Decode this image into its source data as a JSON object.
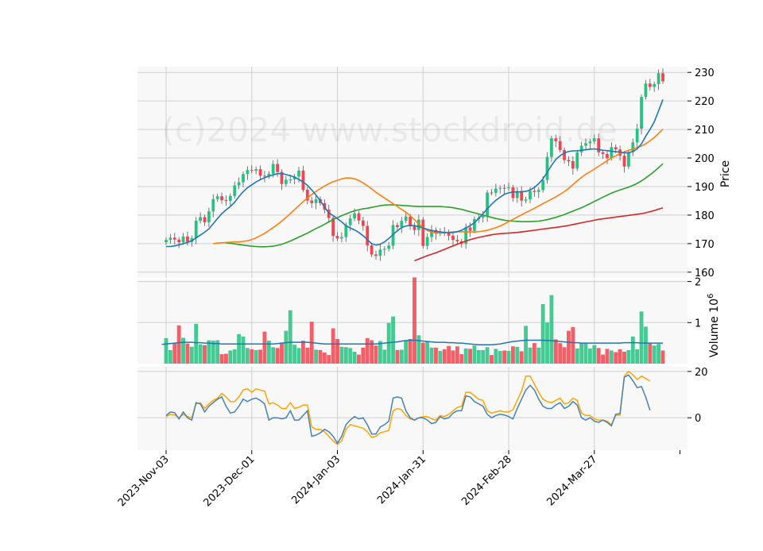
{
  "watermark": "(c)2024 www.stockdroid.de",
  "colors": {
    "up": "#26c281",
    "down": "#f4424e",
    "ma_short": "#1f77b4",
    "ma_mid": "#ff7f0e",
    "ma_long": "#2ca02c",
    "ma_200": "#d62728",
    "vol_ma": "#1f77b4",
    "osc_fast": "#4682b4",
    "osc_slow": "#ffa500",
    "panel_bg": "#f8f8f8",
    "grid": "#d0d0d0"
  },
  "chart_data": {
    "type": "candlestick",
    "x_tick_labels": [
      "2023-Nov-03",
      "2023-Dec-01",
      "2024-Jan-03",
      "2024-Jan-31",
      "2024-Feb-28",
      "2024-Mar-27"
    ],
    "x_tick_index": [
      0,
      20,
      40,
      60,
      80,
      100
    ],
    "price": {
      "ylabel": "Price",
      "ylim": [
        158,
        232
      ],
      "yticks": [
        160,
        170,
        180,
        190,
        200,
        210,
        220,
        230
      ],
      "close": [
        171.3,
        172.1,
        171.4,
        170.5,
        172.5,
        170.6,
        171.9,
        178,
        179.3,
        177.5,
        181.3,
        185.6,
        186.6,
        185.2,
        185,
        186.7,
        190.4,
        191.5,
        194.4,
        195.8,
        195.6,
        196.1,
        193.8,
        193.6,
        194.5,
        197.9,
        195.1,
        190.9,
        192.4,
        192.5,
        193.5,
        195.6,
        188.9,
        185.1,
        184.2,
        185.6,
        184.2,
        181.9,
        179,
        172.7,
        171.8,
        172.3,
        176.5,
        178.8,
        180.6,
        178.1,
        176.2,
        169.4,
        166.2,
        165.7,
        167.9,
        168.2,
        169.3,
        176.5,
        175.8,
        178,
        179.5,
        176.1,
        174.8,
        178.4,
        169.2,
        172.3,
        174.8,
        173.5,
        174.1,
        174,
        172.8,
        171.3,
        170.8,
        169.9,
        175.7,
        174.5,
        178.6,
        179.1,
        179.7,
        187.9,
        187.8,
        189.3,
        189.5,
        189.4,
        189.7,
        186,
        188.4,
        185.1,
        185.5,
        188.5,
        188.1,
        188.8,
        192.3,
        200.4,
        206.9,
        205.9,
        202.8,
        199.3,
        198.9,
        196.3,
        202,
        204.3,
        205.2,
        205.8,
        206.9,
        202,
        201.4,
        200,
        203.8,
        203,
        200.8,
        197,
        202,
        205.5,
        210.3,
        221.4,
        226.1,
        224.9,
        225.9,
        229.7,
        226.9
      ],
      "volume_hint_note": "",
      "ma_short": [
        169,
        169,
        169.2,
        169.6,
        170,
        170.4,
        171,
        172,
        173,
        174,
        175.2,
        177,
        178.8,
        180.5,
        181.8,
        183,
        184.5,
        186.5,
        188.2,
        189.6,
        190.6,
        191.6,
        192.4,
        193.1,
        193.6,
        194.1,
        194.5,
        194.6,
        194.2,
        193.8,
        193.3,
        192.5,
        191.6,
        190.4,
        188.8,
        187,
        185,
        182.8,
        180.8,
        179.8,
        178.8,
        177.6,
        176.3,
        175.5,
        174.8,
        173.9,
        172.8,
        171.4,
        170,
        169.5,
        169.8,
        170.6,
        171.8,
        173.2,
        174.5,
        175.6,
        176.2,
        176.4,
        176.3,
        176,
        175.5,
        175,
        174.6,
        174.3,
        174.1,
        173.9,
        173.8,
        173.9,
        174.2,
        174.7,
        175.5,
        176.3,
        177.3,
        178.8,
        180.5,
        182.2,
        183.8,
        185.2,
        186.3,
        187.3,
        187.8,
        188.1,
        188.1,
        188.2,
        188.3,
        188.8,
        189.7,
        191,
        192.7,
        195,
        197.4,
        199.5,
        200.8,
        201.8,
        202.3,
        202.5,
        202.5,
        202.7,
        202.9,
        203.1,
        203.2,
        203,
        202.7,
        202.6,
        202.4,
        202.2,
        202.1,
        201.8,
        201.8,
        202.3,
        203.2,
        205,
        207.6,
        210,
        212.7,
        216.5,
        220.5
      ],
      "ma_mid": [
        170,
        170.2,
        170.3,
        170.4,
        170.5,
        170.6,
        170.6,
        170.8,
        171,
        171.4,
        172,
        172.8,
        173.6,
        174.6,
        175.6,
        176.7,
        177.9,
        179.2,
        180.5,
        181.9,
        183.3,
        184.7,
        186,
        187.2,
        188.3,
        189.3,
        190.2,
        191,
        191.7,
        192.2,
        192.7,
        193,
        193,
        192.7,
        192.1,
        191.3,
        190.3,
        189.2,
        188,
        187,
        186,
        185,
        184,
        183,
        182,
        181,
        179.8,
        178.4,
        176.9,
        175.6,
        174.6,
        174,
        173.7,
        173.7,
        173.8,
        174,
        174.1,
        174.2,
        174.2,
        174.1,
        174.1,
        174.1,
        174.2,
        174.4,
        174.7,
        175.1,
        175.6,
        176.2,
        176.9,
        177.7,
        178.5,
        179.3,
        180.1,
        180.9,
        181.6,
        182.4,
        183.2,
        184,
        184.8,
        185.6,
        186.4,
        187.3,
        188.2,
        189.4,
        190.7,
        192,
        193.2,
        194.3,
        195.2,
        196.1,
        197.1,
        198.1,
        199.1,
        200,
        200.8,
        201.5,
        202.1,
        202.7,
        203.2,
        203.7,
        204.2,
        205,
        206,
        207.2,
        208.6,
        210.1
      ],
      "ma_long": [
        170.2,
        170.1,
        169.9,
        169.7,
        169.5,
        169.3,
        169.1,
        169,
        168.9,
        168.9,
        169,
        169.1,
        169.4,
        169.8,
        170.3,
        170.9,
        171.6,
        172.3,
        173,
        173.7,
        174.5,
        175.3,
        176,
        176.8,
        177.6,
        178.4,
        179.1,
        179.8,
        180.4,
        181,
        181.5,
        181.9,
        182.2,
        182.4,
        182.7,
        183,
        183.3,
        183.5,
        183.6,
        183.6,
        183.5,
        183.4,
        183.3,
        183.2,
        183.1,
        183,
        183,
        183,
        183,
        183,
        183,
        182.9,
        182.8,
        182.6,
        182.3,
        182,
        181.6,
        181.2,
        180.8,
        180.4,
        180,
        179.6,
        179.2,
        178.8,
        178.5,
        178.2,
        178,
        177.9,
        177.8,
        177.7,
        177.7,
        177.7,
        177.8,
        177.9,
        178.1,
        178.4,
        178.8,
        179.2,
        179.7,
        180.2,
        180.8,
        181.4,
        182,
        182.6,
        183.3,
        184,
        184.8,
        185.5,
        186.3,
        187,
        187.7,
        188.3,
        188.8,
        189.3,
        189.8,
        190.4,
        191.1,
        192,
        193,
        194.1,
        195.3,
        196.6,
        198
      ],
      "ma_200": [
        164,
        164.6,
        165.2,
        165.8,
        166.3,
        166.8,
        167.4,
        168,
        168.6,
        169.2,
        169.8,
        170.4,
        170.9,
        171.4,
        171.8,
        172.2,
        172.5,
        172.8,
        173.1,
        173.3,
        173.5,
        173.6,
        173.7,
        173.8,
        173.9,
        174.1,
        174.3,
        174.5,
        174.7,
        174.9,
        175.1,
        175.3,
        175.5,
        175.7,
        175.9,
        176.1,
        176.4,
        176.7,
        177,
        177.3,
        177.6,
        177.9,
        178.2,
        178.5,
        178.7,
        178.9,
        179.1,
        179.3,
        179.5,
        179.7,
        179.9,
        180.1,
        180.3,
        180.5,
        180.8,
        181.2,
        181.6,
        182.1,
        182.5
      ]
    },
    "volume": {
      "ylabel": "Volume  10^6",
      "ylim": [
        0,
        2.05
      ],
      "yticks": [
        1,
        2
      ],
      "ytick_labels": [
        "1",
        "2"
      ],
      "values": [
        0.62,
        0.33,
        0.49,
        0.93,
        0.63,
        0.49,
        0.41,
        0.97,
        0.47,
        0.45,
        0.57,
        0.56,
        0.57,
        0.23,
        0.24,
        0.32,
        0.35,
        0.72,
        0.66,
        0.38,
        0.35,
        0.33,
        0.34,
        0.78,
        0.56,
        0.4,
        0.38,
        0.51,
        0.8,
        1.3,
        0.46,
        0.38,
        0.56,
        0.39,
        1.02,
        0.34,
        0.33,
        0.27,
        0.21,
        0.86,
        0.6,
        0.41,
        0.4,
        0.38,
        0.29,
        0.22,
        0.39,
        0.62,
        0.57,
        0.44,
        0.55,
        0.34,
        0.99,
        1.15,
        0.33,
        0.34,
        0.57,
        0.6,
        2.1,
        0.69,
        0.51,
        0.54,
        0.39,
        0.39,
        0.31,
        0.35,
        0.43,
        0.32,
        0.42,
        0.23,
        0.37,
        0.36,
        0.44,
        0.33,
        0.33,
        0.4,
        0.21,
        0.36,
        0.31,
        0.32,
        0.31,
        0.42,
        0.41,
        0.3,
        0.92,
        0.39,
        0.5,
        0.39,
        1.45,
        1.0,
        1.67,
        0.59,
        0.5,
        0.4,
        0.8,
        0.89,
        0.37,
        0.5,
        0.51,
        0.37,
        0.45,
        0.38,
        0.22,
        0.36,
        0.32,
        0.28,
        0.35,
        0.29,
        0.33,
        0.66,
        0.35,
        1.27,
        0.9,
        0.51,
        0.44,
        0.48,
        0.32
      ],
      "ma": [
        0.47,
        0.48,
        0.49,
        0.5,
        0.51,
        0.52,
        0.52,
        0.52,
        0.51,
        0.51,
        0.5,
        0.5,
        0.49,
        0.49,
        0.48,
        0.48,
        0.48,
        0.48,
        0.48,
        0.48,
        0.48,
        0.48,
        0.48,
        0.48,
        0.48,
        0.48,
        0.48,
        0.49,
        0.5,
        0.51,
        0.52,
        0.52,
        0.52,
        0.52,
        0.52,
        0.51,
        0.5,
        0.49,
        0.48,
        0.48,
        0.48,
        0.48,
        0.48,
        0.48,
        0.48,
        0.48,
        0.48,
        0.48,
        0.48,
        0.48,
        0.48,
        0.49,
        0.5,
        0.51,
        0.52,
        0.53,
        0.55,
        0.56,
        0.57,
        0.57,
        0.56,
        0.55,
        0.54,
        0.53,
        0.52,
        0.52,
        0.52,
        0.51,
        0.51,
        0.5,
        0.5,
        0.49,
        0.48,
        0.47,
        0.46,
        0.46,
        0.46,
        0.46,
        0.47,
        0.48,
        0.5,
        0.52,
        0.54,
        0.55,
        0.56,
        0.57,
        0.57,
        0.57,
        0.57,
        0.57,
        0.56,
        0.56,
        0.55,
        0.54,
        0.53,
        0.52,
        0.51,
        0.51,
        0.5,
        0.5,
        0.5,
        0.5,
        0.5,
        0.5,
        0.5,
        0.5,
        0.5,
        0.5,
        0.51,
        0.51,
        0.51,
        0.51,
        0.5,
        0.5,
        0.5,
        0.5,
        0.5,
        0.5
      ]
    },
    "oscillator": {
      "ylim": [
        -14,
        22
      ],
      "yticks": [
        0,
        20
      ],
      "fast": [
        1,
        2.5,
        2.2,
        -0.5,
        2.5,
        0,
        -1,
        6.5,
        6,
        2.5,
        5,
        6.5,
        8,
        9,
        5,
        2,
        2.5,
        5,
        8,
        7,
        8,
        8.5,
        7.5,
        6,
        -1,
        0,
        0,
        -0.5,
        0,
        3,
        -1,
        -1,
        1,
        3,
        -8,
        -7.5,
        -6.5,
        -5,
        -6,
        -8,
        -11,
        -8,
        -3,
        -1,
        0.5,
        -0.5,
        0,
        -3,
        -7,
        -7,
        -4,
        -3,
        -1.5,
        8.5,
        9,
        8.5,
        3,
        0,
        -1,
        0,
        0,
        -1,
        -2.5,
        -2,
        0.5,
        -0.5,
        0,
        2,
        3,
        3,
        9.5,
        9,
        7,
        6,
        5,
        1.5,
        0,
        1,
        1.5,
        1.2,
        0.5,
        -0.5,
        4,
        8,
        12,
        14,
        12,
        8,
        5,
        4,
        4,
        5.5,
        6.5,
        4,
        5,
        7,
        5.5,
        0,
        -1,
        0,
        -1.5,
        -2,
        -1,
        -2,
        -3.5,
        1.5,
        1.8,
        17.5,
        18.5,
        16,
        13,
        13.5,
        9,
        3.2
      ],
      "slow": [
        0.5,
        1.5,
        1.2,
        0,
        1.5,
        0.5,
        0,
        6,
        6.5,
        4,
        6,
        7.5,
        8.5,
        10.5,
        9,
        7,
        7,
        9,
        12,
        12.5,
        11,
        12.5,
        12,
        11.5,
        6,
        6.5,
        5.5,
        4,
        4,
        6.5,
        4,
        4.5,
        5.5,
        5.5,
        -4,
        -5,
        -5,
        -6,
        -8,
        -10,
        -11.5,
        -10,
        -5,
        -3,
        -3.5,
        -4,
        -4.5,
        -6,
        -8.5,
        -8,
        -6.5,
        -6,
        -5.5,
        3,
        4,
        3.5,
        1,
        -0.5,
        -1,
        0,
        0.5,
        0.5,
        -0.5,
        -1,
        1,
        0.5,
        1.5,
        3,
        4.5,
        5,
        11,
        11,
        9.5,
        8,
        7.5,
        3,
        2,
        2.5,
        3,
        2.5,
        2.5,
        3.5,
        7.5,
        11.5,
        18,
        18,
        14.5,
        11,
        8,
        7,
        6.5,
        7.5,
        8.5,
        6,
        6.5,
        8.5,
        7.5,
        2,
        1,
        1,
        -0.5,
        -1,
        -1,
        -1.5,
        -3,
        1,
        1.2,
        18,
        20,
        18.5,
        16.5,
        18,
        17,
        15.8
      ]
    }
  }
}
